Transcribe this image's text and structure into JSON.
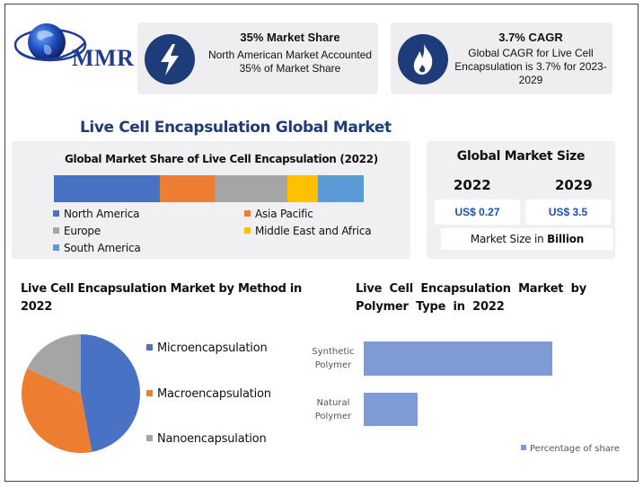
{
  "brand": {
    "name": "MMR"
  },
  "colors": {
    "navy": "#1f3c7a",
    "blue": "#4a72c4",
    "orange": "#ed7d31",
    "gray": "#a5a5a5",
    "yellow": "#ffc000",
    "lightblue": "#5b9bd5",
    "bar": "#7f9bd6"
  },
  "cards": [
    {
      "title": "35% Market Share",
      "desc": "North American Market Accounted 35% of Market Share",
      "icon": "lightning-bolt-icon"
    },
    {
      "title": "3.7% CAGR",
      "desc": "Global CAGR for Live Cell Encapsulation is 3.7% for 2023-2029",
      "icon": "flame-icon"
    }
  ],
  "main_title": "Live Cell Encapsulation Global Market",
  "market_size": {
    "title": "Global Market Size",
    "years": [
      "2022",
      "2029"
    ],
    "values": [
      "US$ 0.27",
      "US$ 3.5"
    ],
    "note_prefix": "Market Size in ",
    "note_unit": "Billion"
  },
  "chart_data": [
    {
      "type": "bar",
      "stacked": true,
      "orientation": "horizontal",
      "title": "Global Market Share of Live Cell Encapsulation (2022)",
      "series": [
        {
          "name": "North America",
          "values": [
            35
          ],
          "color": "#4a72c4"
        },
        {
          "name": "Asia Pacific",
          "values": [
            18
          ],
          "color": "#ed7d31"
        },
        {
          "name": "Europe",
          "values": [
            24
          ],
          "color": "#a5a5a5"
        },
        {
          "name": "Middle East and Africa",
          "values": [
            10
          ],
          "color": "#ffc000"
        },
        {
          "name": "South America",
          "values": [
            15
          ],
          "color": "#5b9bd5"
        }
      ],
      "legend": "bottom"
    },
    {
      "type": "pie",
      "title": "Live Cell Encapsulation Market by Method in 2022",
      "categories": [
        "Microencapsulation",
        "Macroencapsulation",
        "Nanoencapsulation"
      ],
      "values": [
        47,
        35,
        18
      ],
      "colors": [
        "#4a72c4",
        "#ed7d31",
        "#a5a5a5"
      ],
      "legend": "right"
    },
    {
      "type": "bar",
      "orientation": "horizontal",
      "title": "Live Cell Encapsulation Market by Polymer Type in 2022",
      "categories": [
        "Synthetic Polymer",
        "Natural Polymer"
      ],
      "series": [
        {
          "name": "Percentage of share",
          "values": [
            70,
            20
          ]
        }
      ],
      "legend": "bottom-right"
    }
  ]
}
